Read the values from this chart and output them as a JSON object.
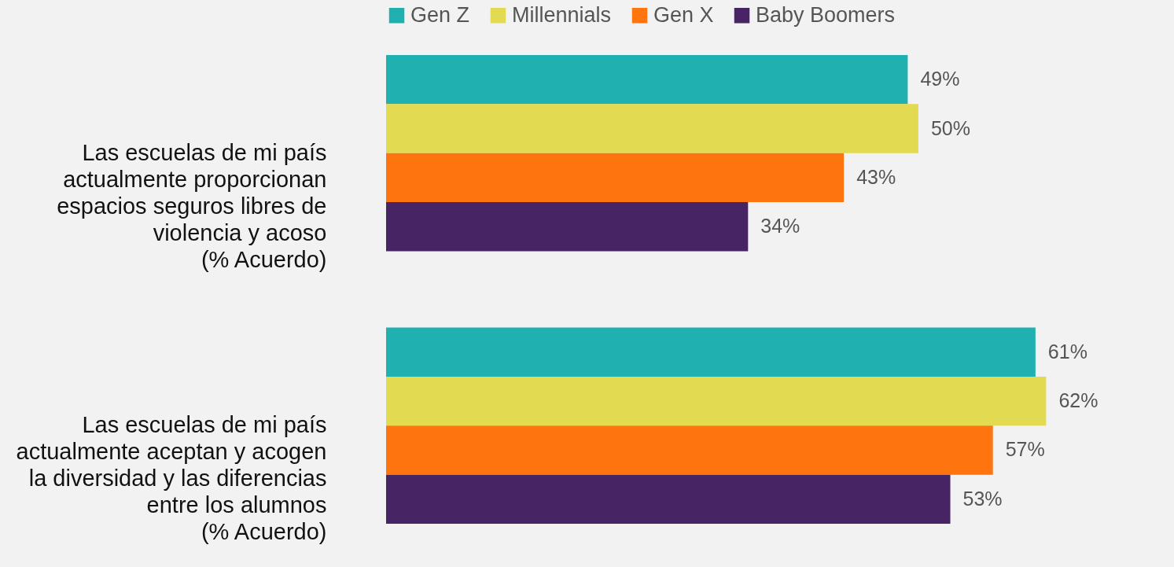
{
  "chart_data": {
    "type": "bar",
    "orientation": "horizontal",
    "legend": "top",
    "grid": false,
    "categories": [
      "Las escuelas de mi país\nactualmente proporcionan\nespacios seguros libres de\nviolencia y acoso\n(% Acuerdo)",
      "Las escuelas de mi país\nactualmente aceptan y acogen\nla diversidad y las diferencias\nentre los alumnos\n(% Acuerdo)"
    ],
    "series": [
      {
        "name": "Gen Z",
        "color": "#20b0b0",
        "values": [
          49,
          61
        ],
        "value_labels": [
          "49%",
          "61%"
        ]
      },
      {
        "name": "Millennials",
        "color": "#e2da50",
        "values": [
          50,
          62
        ],
        "value_labels": [
          "50%",
          "62%"
        ]
      },
      {
        "name": "Gen X",
        "color": "#fe7510",
        "values": [
          43,
          57
        ],
        "value_labels": [
          "43%",
          "57%"
        ]
      },
      {
        "name": "Baby Boomers",
        "color": "#472463",
        "values": [
          34,
          53
        ],
        "value_labels": [
          "34%",
          "53%"
        ]
      }
    ]
  }
}
